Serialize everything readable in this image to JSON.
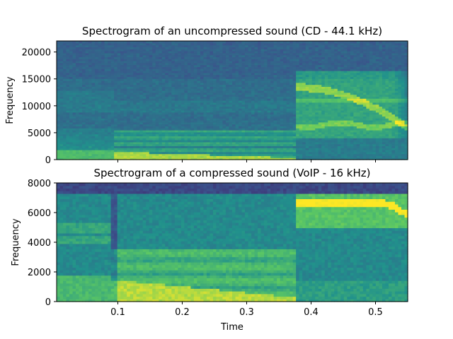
{
  "chart_data": [
    {
      "type": "heatmap",
      "title": "Spectrogram of an uncompressed sound (CD - 44.1 kHz)",
      "xlabel": "",
      "ylabel": "Frequency",
      "xlim": [
        0.005,
        0.55
      ],
      "ylim": [
        0,
        22050
      ],
      "yticks": [
        0,
        5000,
        10000,
        15000,
        20000
      ],
      "yticklabels": [
        "0",
        "5000",
        "10000",
        "15000",
        "20000"
      ],
      "xticks": [
        0.1,
        0.2,
        0.3,
        0.4,
        0.5
      ],
      "xticklabels": [],
      "colormap": [
        "#440154",
        "#3b528b",
        "#21918c",
        "#5ec962",
        "#fde725"
      ],
      "background_level": 0.38,
      "segments": [
        {
          "t_start": 0.005,
          "t_end": 0.095,
          "description_level": 0.45
        },
        {
          "t_start": 0.095,
          "t_end": 0.375,
          "description_level": 0.55
        },
        {
          "t_start": 0.375,
          "t_end": 0.545,
          "description_level": 0.6
        }
      ]
    },
    {
      "type": "heatmap",
      "title": "Spectrogram of a compressed sound (VoIP - 16 kHz)",
      "xlabel": "Time",
      "ylabel": "Frequency",
      "xlim": [
        0.005,
        0.55
      ],
      "ylim": [
        0,
        8000
      ],
      "yticks": [
        0,
        2000,
        4000,
        6000,
        8000
      ],
      "yticklabels": [
        "0",
        "2000",
        "4000",
        "6000",
        "8000"
      ],
      "xticks": [
        0.1,
        0.2,
        0.3,
        0.4,
        0.5
      ],
      "xticklabels": [
        "0.1",
        "0.2",
        "0.3",
        "0.4",
        "0.5"
      ],
      "colormap": [
        "#440154",
        "#3b528b",
        "#21918c",
        "#5ec962",
        "#fde725"
      ],
      "background_level": 0.5
    }
  ]
}
